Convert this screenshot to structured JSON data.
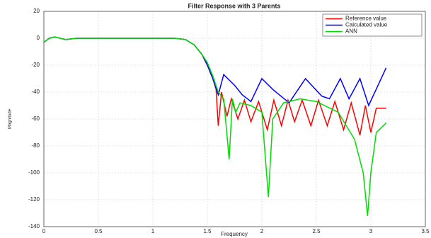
{
  "chart_data": {
    "type": "line",
    "title": "Filter Response with 3 Parents",
    "xlabel": "Frequency",
    "ylabel": "Magnitude",
    "xlim": [
      0,
      3.5
    ],
    "xticks": [
      0,
      0.5,
      1,
      1.5,
      2,
      2.5,
      3,
      3.5
    ],
    "ylim": [
      -140,
      20
    ],
    "yticks": [
      -140,
      -120,
      -100,
      -80,
      -60,
      -40,
      -20,
      0,
      20
    ],
    "grid": true,
    "legend": "upper right",
    "series": [
      {
        "name": "Reference value",
        "color": "#ff0000",
        "x": [
          0,
          0.05,
          0.1,
          0.2,
          0.3,
          0.5,
          1.0,
          1.2,
          1.3,
          1.38,
          1.45,
          1.5,
          1.55,
          1.58,
          1.6,
          1.63,
          1.68,
          1.72,
          1.78,
          1.84,
          1.9,
          1.97,
          2.05,
          2.11,
          2.18,
          2.24,
          2.3,
          2.37,
          2.45,
          2.52,
          2.6,
          2.67,
          2.75,
          2.82,
          2.9,
          2.95,
          3.0,
          3.05,
          3.14
        ],
        "values": [
          -3,
          0,
          1,
          -1,
          0,
          0,
          0,
          0,
          -1,
          -5,
          -12,
          -20,
          -30,
          -38,
          -65,
          -40,
          -58,
          -45,
          -60,
          -46,
          -62,
          -47,
          -68,
          -46,
          -65,
          -46,
          -62,
          -46,
          -65,
          -46,
          -65,
          -47,
          -68,
          -48,
          -72,
          -50,
          -70,
          -52,
          -52
        ]
      },
      {
        "name": "Calculated value",
        "color": "#0000ff",
        "x": [
          0,
          0.05,
          0.1,
          0.2,
          0.3,
          0.5,
          1.0,
          1.2,
          1.3,
          1.38,
          1.45,
          1.5,
          1.55,
          1.6,
          1.65,
          1.75,
          1.82,
          1.9,
          2.0,
          2.1,
          2.25,
          2.4,
          2.55,
          2.62,
          2.72,
          2.8,
          2.9,
          2.98,
          3.14
        ],
        "values": [
          -3,
          0,
          1,
          -1,
          0,
          0,
          0,
          0,
          -1,
          -5,
          -12,
          -20,
          -30,
          -42,
          -27,
          -35,
          -42,
          -47,
          -30,
          -38,
          -48,
          -30,
          -43,
          -45,
          -30,
          -45,
          -30,
          -50,
          -22
        ]
      },
      {
        "name": "ANN",
        "color": "#00dd00",
        "x": [
          0,
          0.05,
          0.1,
          0.2,
          0.3,
          0.5,
          1.0,
          1.2,
          1.3,
          1.38,
          1.45,
          1.5,
          1.55,
          1.6,
          1.65,
          1.7,
          1.73,
          1.76,
          1.8,
          1.9,
          2.0,
          2.06,
          2.1,
          2.2,
          2.35,
          2.5,
          2.7,
          2.85,
          2.93,
          2.97,
          3.0,
          3.05,
          3.14
        ],
        "values": [
          -3,
          0,
          1,
          -1,
          0,
          0,
          0,
          0,
          -1,
          -5,
          -12,
          -18,
          -28,
          -40,
          -45,
          -90,
          -45,
          -55,
          -48,
          -50,
          -55,
          -118,
          -60,
          -48,
          -45,
          -47,
          -55,
          -75,
          -100,
          -132,
          -100,
          -70,
          -63
        ]
      }
    ]
  }
}
